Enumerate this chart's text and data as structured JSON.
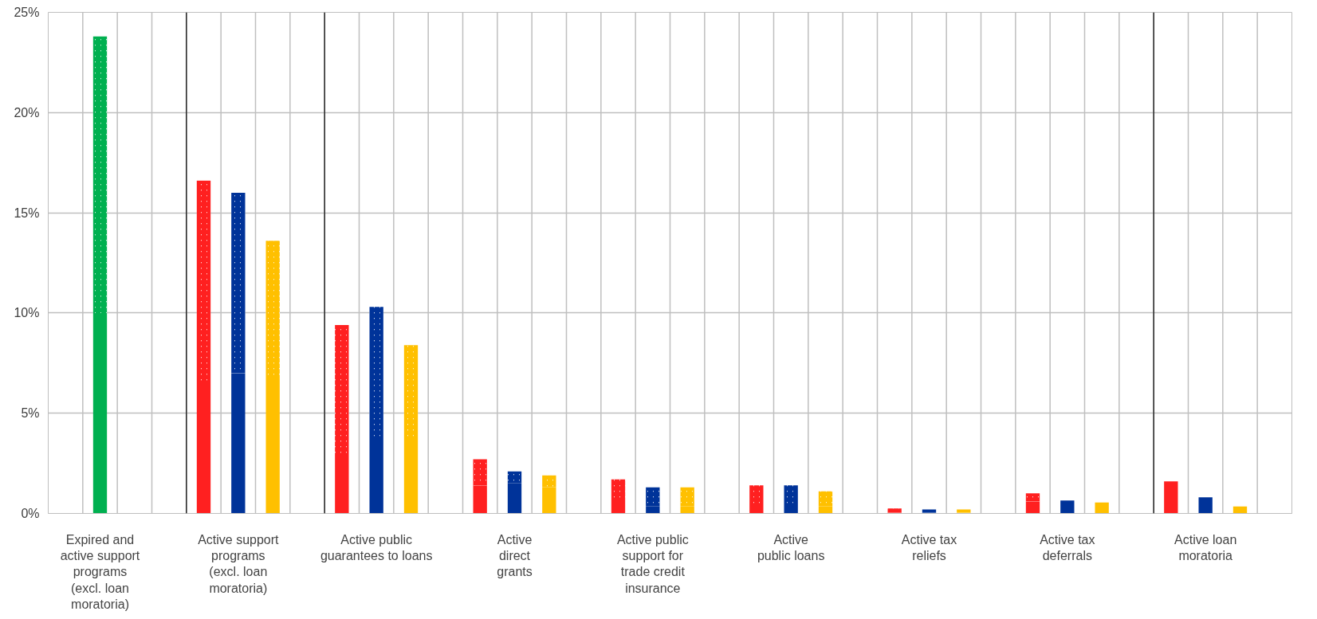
{
  "chart_data": {
    "type": "bar",
    "stacked": true,
    "categories": [
      null,
      "Expired and\nactive support\nprograms\n(excl. loan\nmoratoria)",
      null,
      null,
      null,
      "Active support\nprograms\n(excl. loan\nmoratoria)",
      null,
      null,
      null,
      "Active public\nguarantees to loans",
      null,
      null,
      null,
      "Active\ndirect\ngrants",
      null,
      null,
      null,
      "Active public\nsupport for\ntrade credit\ninsurance",
      null,
      null,
      null,
      "Active\npublic loans",
      null,
      null,
      null,
      "Active tax\nreliefs",
      null,
      null,
      null,
      "Active tax\ndeferrals",
      null,
      null,
      null,
      "Active loan\nmoratoria",
      null,
      null
    ],
    "series": [
      {
        "colors": [
          "#ff2020",
          "#00b050",
          "#ffc000",
          "#000000",
          "#ff2020",
          "#003399",
          "#ffc000",
          "#000000",
          "#ff2020",
          "#003399",
          "#ffc000",
          "#000000",
          "#ff2020",
          "#003399",
          "#ffc000",
          "#000000",
          "#ff2020",
          "#003399",
          "#ffc000",
          "#000000",
          "#ff2020",
          "#003399",
          "#ffc000",
          "#000000",
          "#ff2020",
          "#003399",
          "#ffc000",
          "#000000",
          "#ff2020",
          "#003399",
          "#ffc000",
          "#000000",
          "#ff2020",
          "#003399",
          "#ffc000",
          "#000000"
        ],
        "values": [
          null,
          10.0,
          null,
          null,
          6.5,
          7.0,
          6.7,
          null,
          3.0,
          3.8,
          3.8,
          null,
          1.4,
          1.5,
          1.3,
          null,
          0.7,
          0.35,
          0.35,
          null,
          0.5,
          0.5,
          0.35,
          null,
          0.05,
          0.05,
          0.05,
          null,
          0.6,
          0.65,
          0.55,
          null,
          1.6,
          0.8,
          0.35,
          null
        ]
      },
      {
        "colors": [
          "#ff2020",
          "#00b050",
          "#ffc000",
          "#000000",
          "#ff2020",
          "#003399",
          "#ffc000",
          "#000000",
          "#ff2020",
          "#003399",
          "#ffc000",
          "#000000",
          "#ff2020",
          "#003399",
          "#ffc000",
          "#000000",
          "#ff2020",
          "#003399",
          "#ffc000",
          "#000000",
          "#ff2020",
          "#003399",
          "#ffc000",
          "#000000",
          "#ff2020",
          "#003399",
          "#ffc000",
          "#000000",
          "#ff2020",
          "#003399",
          "#ffc000",
          "#000000",
          "#ff2020",
          "#003399",
          "#ffc000",
          "#000000"
        ],
        "values": [
          null,
          13.8,
          null,
          null,
          10.1,
          9.0,
          6.9,
          null,
          6.4,
          6.5,
          4.6,
          null,
          1.3,
          0.6,
          0.6,
          null,
          1.0,
          0.95,
          0.95,
          null,
          0.9,
          0.9,
          0.75,
          null,
          0.2,
          0.15,
          0.15,
          null,
          0.4,
          null,
          null,
          null,
          null,
          null,
          null,
          null
        ]
      }
    ],
    "ylim": [
      0,
      25
    ],
    "yticks": [
      {
        "value": 0,
        "label": "0%"
      },
      {
        "value": 5,
        "label": "5%"
      },
      {
        "value": 10,
        "label": "10%"
      },
      {
        "value": 15,
        "label": "15%"
      },
      {
        "value": 20,
        "label": "20%"
      },
      {
        "value": 25,
        "label": "25%"
      }
    ],
    "grid": true
  }
}
